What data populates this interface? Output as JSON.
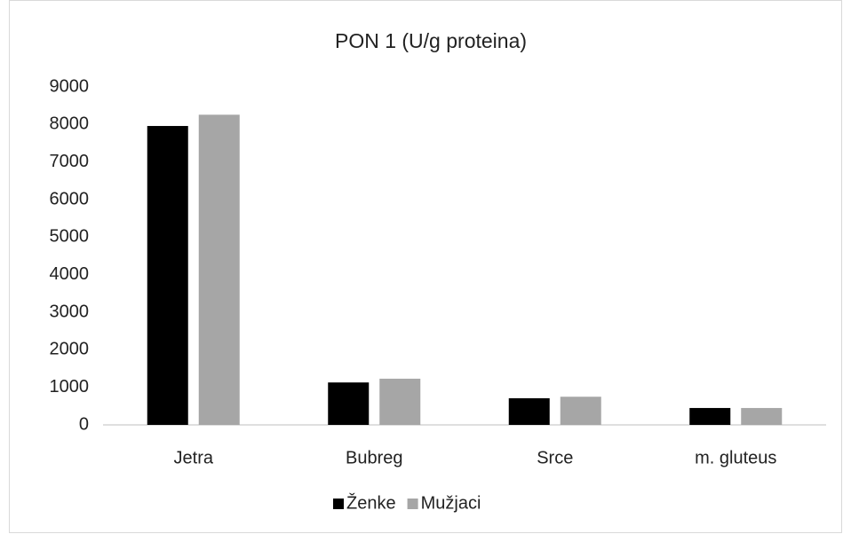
{
  "chart_data": {
    "type": "bar",
    "title": "PON 1 (U/g proteina)",
    "categories": [
      "Jetra",
      "Bubreg",
      "Srce",
      "m. gluteus"
    ],
    "series": [
      {
        "name": "Ženke",
        "color": "#000000",
        "values": [
          7960,
          1130,
          710,
          450
        ]
      },
      {
        "name": "Mužjaci",
        "color": "#a6a6a6",
        "values": [
          8260,
          1230,
          750,
          450
        ]
      }
    ],
    "ylim": [
      0,
      9000
    ],
    "yticks": [
      0,
      1000,
      2000,
      3000,
      4000,
      5000,
      6000,
      7000,
      8000,
      9000
    ],
    "grid": false,
    "legend": "bottom"
  }
}
